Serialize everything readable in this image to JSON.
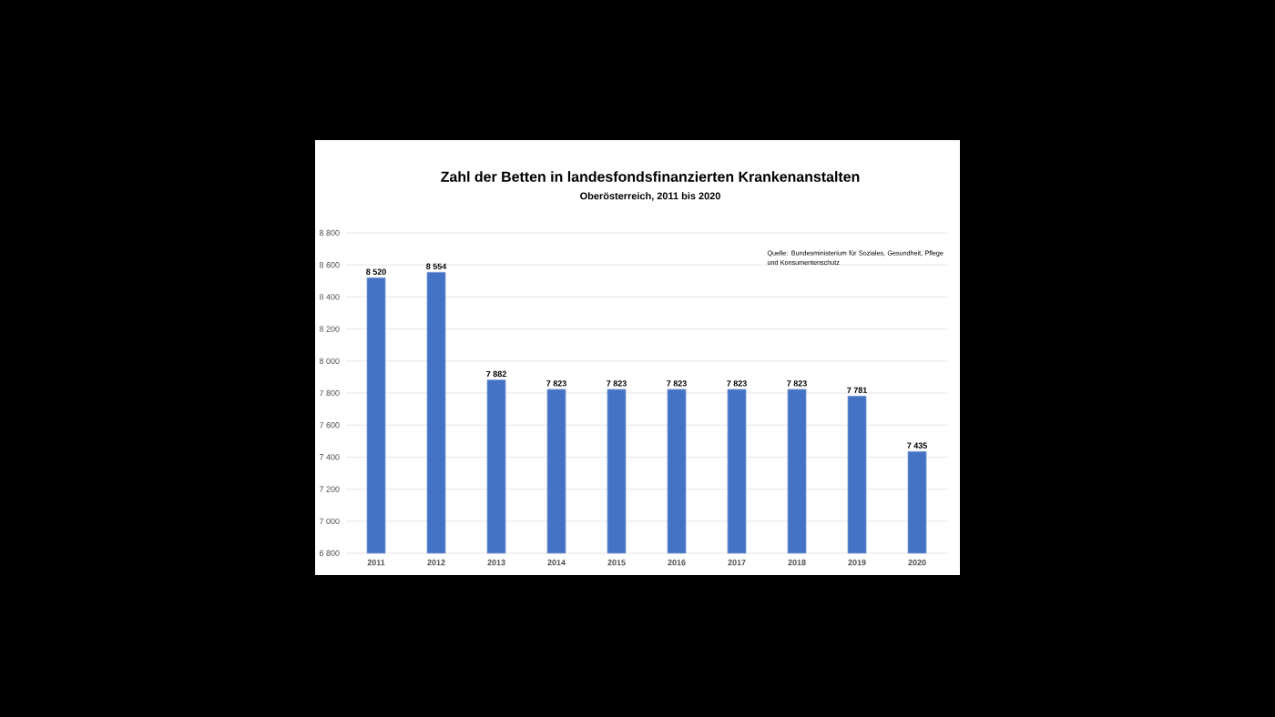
{
  "chart_data": {
    "type": "bar",
    "title": "Zahl der Betten in landesfondsfinanzierten Krankenanstalten",
    "subtitle": "Oberösterreich, 2011 bis 2020",
    "annotations": [
      "Quelle: Bundesministerium für Soziales, Gesundheit, Pflege  und Konsumentenschutz"
    ],
    "categories": [
      "2011",
      "2012",
      "2013",
      "2014",
      "2015",
      "2016",
      "2017",
      "2018",
      "2019",
      "2020"
    ],
    "values": [
      8520,
      8554,
      7882,
      7823,
      7823,
      7823,
      7823,
      7823,
      7781,
      7435
    ],
    "value_labels": [
      "8 520",
      "8 554",
      "7 882",
      "7 823",
      "7 823",
      "7 823",
      "7 823",
      "7 823",
      "7 781",
      "7 435"
    ],
    "color": "#4472c4",
    "ylim": [
      6800,
      8800
    ],
    "yticks": [
      {
        "value": 6800,
        "label": "6 800"
      },
      {
        "value": 7000,
        "label": "7 000"
      },
      {
        "value": 7200,
        "label": "7 200"
      },
      {
        "value": 7400,
        "label": "7 400"
      },
      {
        "value": 7600,
        "label": "7 600"
      },
      {
        "value": 7800,
        "label": "7 800"
      },
      {
        "value": 8000,
        "label": "8 000"
      },
      {
        "value": 8200,
        "label": "8 200"
      },
      {
        "value": 8400,
        "label": "8 400"
      },
      {
        "value": 8600,
        "label": "8 600"
      },
      {
        "value": 8800,
        "label": "8 800"
      }
    ],
    "grid": "y"
  }
}
